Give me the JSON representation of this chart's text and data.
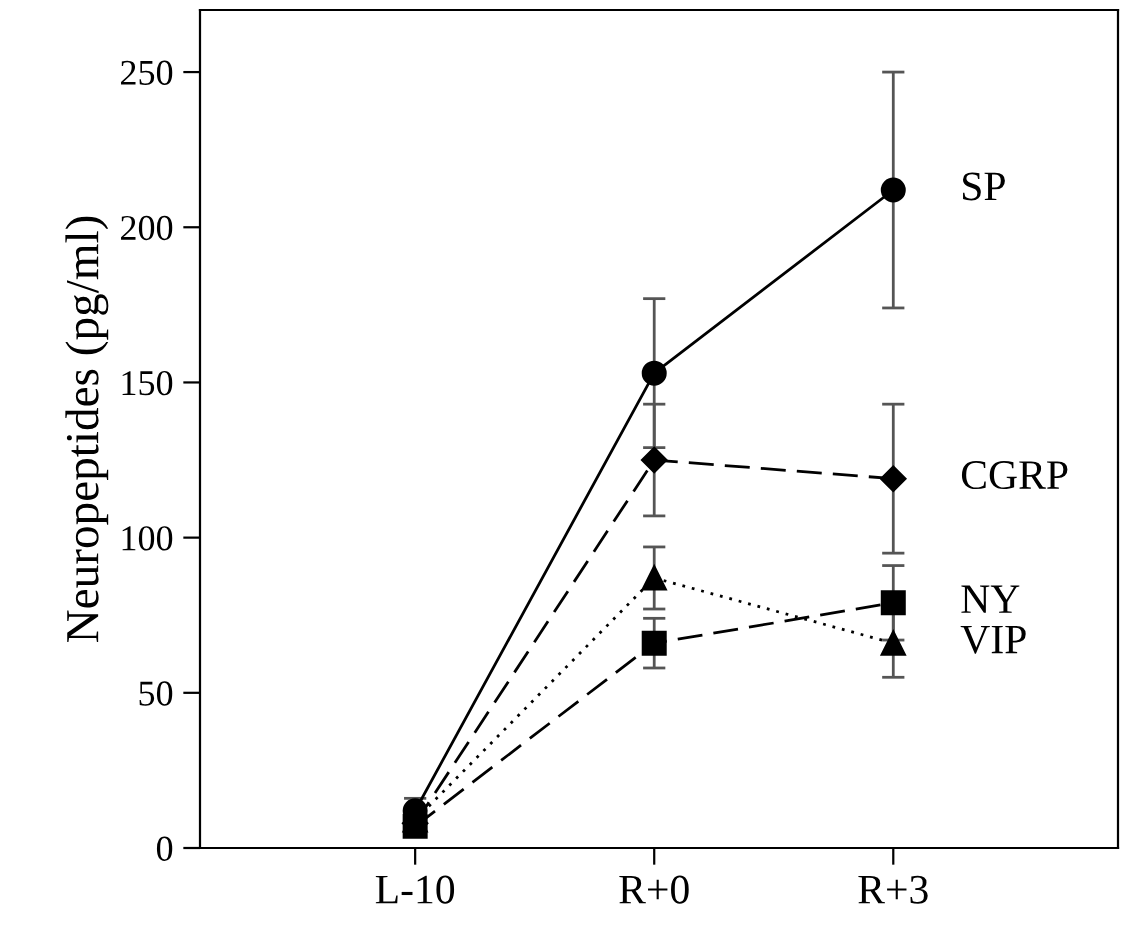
{
  "chart_data": {
    "type": "line",
    "ylabel": "Neuropeptides (pg/ml)",
    "categories": [
      "L-10",
      "R+0",
      "R+3"
    ],
    "ylim": [
      0,
      270
    ],
    "yticks": [
      0,
      50,
      100,
      150,
      200,
      250
    ],
    "grid": false,
    "legend": false,
    "series": [
      {
        "name": "SP",
        "color": "#000000",
        "marker": "circle",
        "line_style": "solid",
        "values": [
          12,
          153,
          212
        ],
        "errors": [
          4,
          24,
          38
        ]
      },
      {
        "name": "CGRP",
        "color": "#000000",
        "marker": "diamond",
        "line_style": "dashed",
        "values": [
          8,
          125,
          119
        ],
        "errors": [
          3,
          18,
          24
        ]
      },
      {
        "name": "NY",
        "color": "#000000",
        "marker": "square",
        "line_style": "dashed",
        "values": [
          7,
          66,
          79
        ],
        "errors": [
          3,
          8,
          12
        ]
      },
      {
        "name": "VIP",
        "color": "#000000",
        "marker": "triangle",
        "line_style": "dotted",
        "values": [
          9,
          87,
          66
        ],
        "errors": [
          3,
          10,
          11
        ]
      }
    ]
  }
}
